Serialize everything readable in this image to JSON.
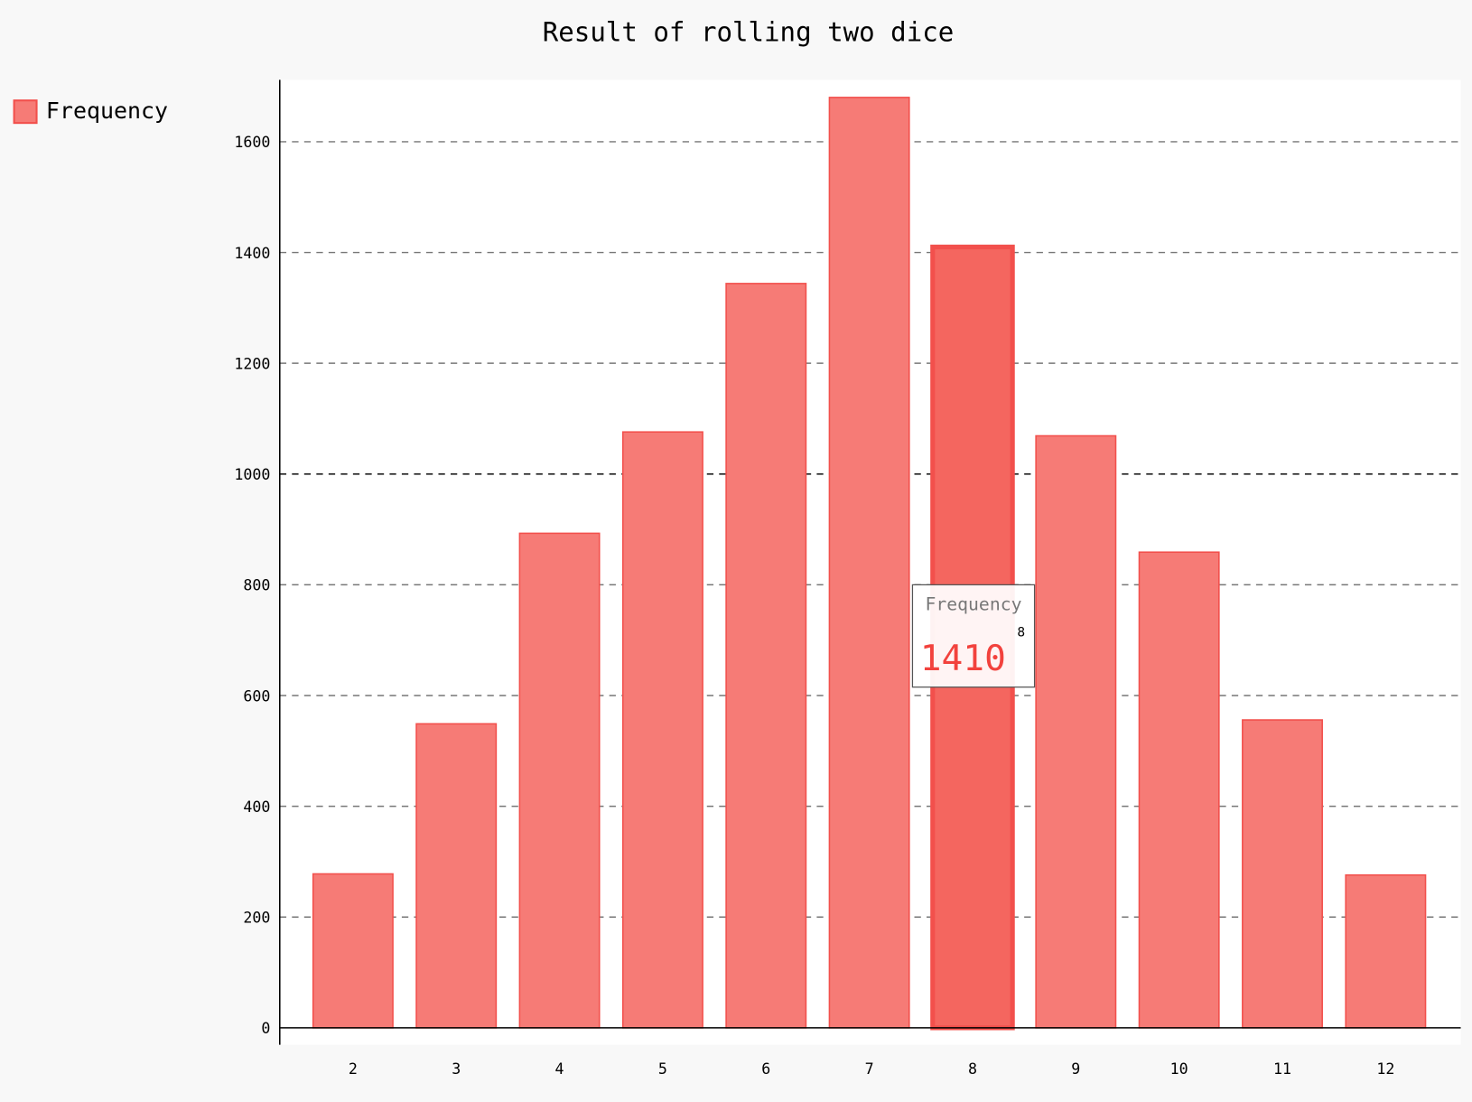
{
  "chart_data": {
    "type": "bar",
    "title": "Result of rolling two dice",
    "xlabel": "",
    "ylabel": "",
    "categories": [
      "2",
      "3",
      "4",
      "5",
      "6",
      "7",
      "8",
      "9",
      "10",
      "11",
      "12"
    ],
    "series": [
      {
        "name": "Frequency",
        "values": [
          278,
          549,
          893,
          1076,
          1344,
          1680,
          1410,
          1069,
          859,
          556,
          276
        ]
      }
    ],
    "ylim": [
      0,
      1700
    ],
    "yticks": [
      "0",
      "200",
      "400",
      "600",
      "800",
      "1000",
      "1200",
      "1400",
      "1600"
    ],
    "grid": true,
    "legend": "top-left",
    "colors": {
      "bar": "#f67b76",
      "bar_stroke": "#f2504c",
      "highlight": "#f4665f"
    },
    "tooltip": {
      "series": "Frequency",
      "category": "8",
      "value": "1410"
    }
  }
}
